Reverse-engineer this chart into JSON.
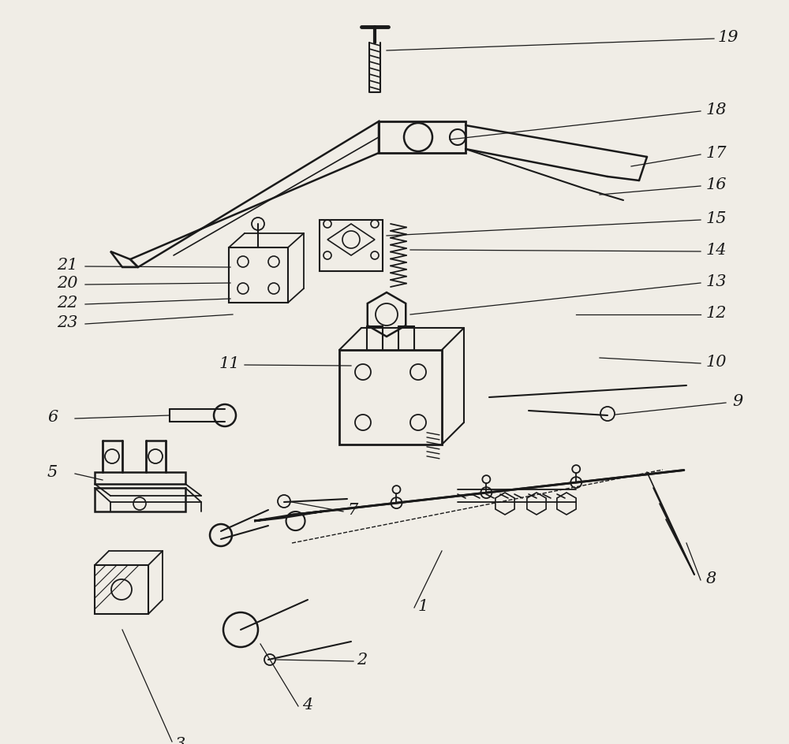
{
  "bg_color": "#f0ede6",
  "line_color": "#1a1a1a",
  "lw": 1.5,
  "fig_w": 10.0,
  "fig_h": 9.45,
  "dpi": 100
}
